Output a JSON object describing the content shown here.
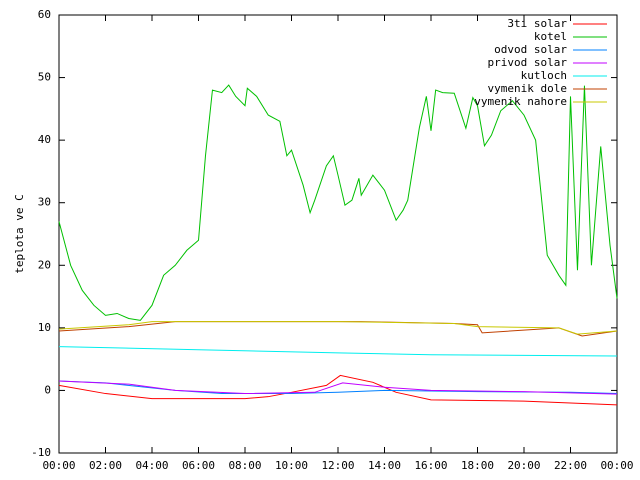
{
  "chart_data": {
    "type": "line",
    "ylabel": "teplota ve C",
    "xlim": [
      0,
      24
    ],
    "ylim": [
      -10,
      60
    ],
    "xticks": [
      {
        "value": 0,
        "label": "00:00"
      },
      {
        "value": 2,
        "label": "02:00"
      },
      {
        "value": 4,
        "label": "04:00"
      },
      {
        "value": 6,
        "label": "06:00"
      },
      {
        "value": 8,
        "label": "08:00"
      },
      {
        "value": 10,
        "label": "10:00"
      },
      {
        "value": 12,
        "label": "12:00"
      },
      {
        "value": 14,
        "label": "14:00"
      },
      {
        "value": 16,
        "label": "16:00"
      },
      {
        "value": 18,
        "label": "18:00"
      },
      {
        "value": 20,
        "label": "20:00"
      },
      {
        "value": 22,
        "label": "22:00"
      },
      {
        "value": 24,
        "label": "00:00"
      }
    ],
    "yticks": [
      -10,
      0,
      10,
      20,
      30,
      40,
      50,
      60
    ],
    "legend": "top-right",
    "series": [
      {
        "name": "3ti solar",
        "color": "#ff0000",
        "x": [
          0,
          2,
          4,
          8,
          9,
          10,
          11.5,
          12.1,
          13.5,
          14.5,
          16,
          20,
          24
        ],
        "values": [
          0.8,
          -0.5,
          -1.3,
          -1.3,
          -1,
          -0.3,
          0.8,
          2.4,
          1.3,
          -0.3,
          -1.5,
          -1.7,
          -2.3
        ]
      },
      {
        "name": "kotel",
        "color": "#00c000",
        "x": [
          0,
          0.5,
          1,
          1.5,
          2,
          2.5,
          3,
          3.5,
          4,
          4.5,
          5,
          5.5,
          6,
          6.3,
          6.6,
          7,
          7.3,
          7.6,
          8,
          8.1,
          8.5,
          9,
          9.5,
          9.8,
          10,
          10.5,
          10.8,
          11,
          11.5,
          11.8,
          12,
          12.3,
          12.6,
          12.9,
          13,
          13.5,
          14,
          14.5,
          14.8,
          15,
          15.5,
          15.8,
          16,
          16.2,
          16.5,
          17,
          17.5,
          17.8,
          18,
          18.3,
          18.6,
          19,
          19.5,
          20,
          20.5,
          21,
          21.5,
          21.8,
          22,
          22.3,
          22.6,
          22.9,
          23.3,
          23.7,
          24
        ],
        "values": [
          27,
          20,
          16,
          13.6,
          12,
          12.3,
          11.5,
          11.2,
          13.6,
          18.4,
          20,
          22.4,
          24,
          37.5,
          48,
          47.6,
          48.8,
          47,
          45.5,
          48.3,
          47,
          44,
          43,
          37.5,
          38.4,
          32.8,
          28.4,
          30.4,
          35.9,
          37.5,
          34.4,
          29.6,
          30.4,
          33.9,
          31.2,
          34.4,
          32,
          27.2,
          28.8,
          30.4,
          42,
          47,
          41.5,
          48,
          47.6,
          47.5,
          41.9,
          46.8,
          45.5,
          39.1,
          40.8,
          44.7,
          46.3,
          44,
          40,
          21.6,
          18.4,
          16.8,
          47,
          19.2,
          48.7,
          20,
          39,
          23.2,
          14.7
        ]
      },
      {
        "name": "odvod solar",
        "color": "#0080ff",
        "x": [
          0,
          2,
          5,
          7,
          10,
          12,
          14,
          18,
          22,
          24
        ],
        "values": [
          1.5,
          1.2,
          0,
          -0.5,
          -0.5,
          -0.3,
          0,
          -0.2,
          -0.3,
          -0.5
        ]
      },
      {
        "name": "privod solar",
        "color": "#c000ff",
        "x": [
          0,
          3,
          5,
          8,
          11,
          12.2,
          14,
          16,
          20,
          24
        ],
        "values": [
          1.5,
          1,
          0,
          -0.5,
          -0.3,
          1.2,
          0.5,
          0,
          -0.2,
          -0.6
        ]
      },
      {
        "name": "kutloch",
        "color": "#00eeee",
        "x": [
          0,
          6,
          12,
          16,
          24
        ],
        "values": [
          7,
          6.5,
          6,
          5.7,
          5.5
        ]
      },
      {
        "name": "vymenik dole",
        "color": "#c04000",
        "x": [
          0,
          3,
          5,
          13,
          17,
          18,
          18.2,
          21.5,
          22.5,
          24
        ],
        "values": [
          9.5,
          10.2,
          11,
          11,
          10.7,
          10.5,
          9.2,
          10,
          8.7,
          9.5
        ]
      },
      {
        "name": "vymenik nahore",
        "color": "#c8c800",
        "x": [
          0,
          3,
          4,
          12,
          17,
          18,
          21.5,
          22.3,
          24
        ],
        "values": [
          9.8,
          10.5,
          11,
          11,
          10.7,
          10.2,
          10,
          9,
          9.5
        ]
      }
    ]
  }
}
